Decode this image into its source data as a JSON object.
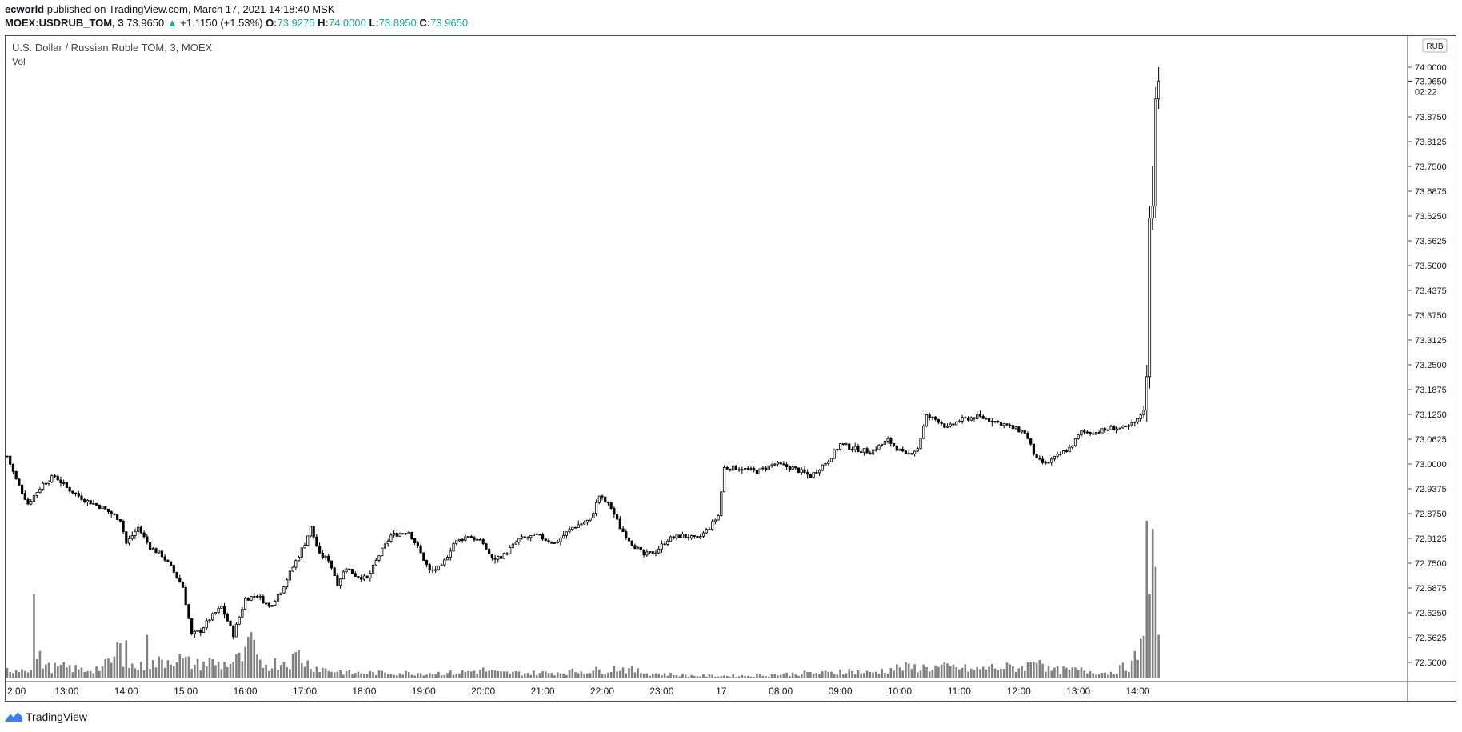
{
  "header": {
    "author": "ecworld",
    "published_text": " published on TradingView.com, March 17, 2021 14:18:40 MSK",
    "symbol": "MOEX:USDRUB_TOM, 3",
    "last": "73.9650",
    "change_arrow": "▲",
    "change": "+1.1150 (+1.53%)",
    "o_label": "O:",
    "o_value": "73.9275",
    "h_label": "H:",
    "h_value": "74.0000",
    "l_label": "L:",
    "l_value": "73.8950",
    "c_label": "C:",
    "c_value": "73.9650"
  },
  "legend": {
    "title": "U.S. Dollar / Russian Ruble TOM, 3, MOEX",
    "vol_label": "Vol"
  },
  "price_axis": {
    "currency_badge": "RUB",
    "last_price": "73.9650",
    "countdown": "02:22"
  },
  "brand": {
    "name": "TradingView"
  },
  "colors": {
    "up_body": "#ffffff",
    "down_body": "#000000",
    "wick": "#000000",
    "volume": "#808080",
    "accent": "#26a69a"
  },
  "chart_data": {
    "type": "candlestick",
    "title": "U.S. Dollar / Russian Ruble TOM, 3, MOEX",
    "ylim": [
      72.45,
      74.05
    ],
    "y_ticks": [
      "74.0000",
      "73.8750",
      "73.8125",
      "73.7500",
      "73.6875",
      "73.6250",
      "73.5625",
      "73.5000",
      "73.4375",
      "73.3750",
      "73.3125",
      "73.2500",
      "73.1875",
      "73.1250",
      "73.0625",
      "73.0000",
      "72.9375",
      "72.8750",
      "72.8125",
      "72.7500",
      "72.6875",
      "72.6250",
      "72.5625",
      "72.5000"
    ],
    "x_ticks": [
      {
        "label": "2:00",
        "i": 0
      },
      {
        "label": "13:00",
        "i": 20
      },
      {
        "label": "14:00",
        "i": 40
      },
      {
        "label": "15:00",
        "i": 60
      },
      {
        "label": "16:00",
        "i": 80
      },
      {
        "label": "17:00",
        "i": 100
      },
      {
        "label": "18:00",
        "i": 120
      },
      {
        "label": "19:00",
        "i": 140
      },
      {
        "label": "20:00",
        "i": 160
      },
      {
        "label": "21:00",
        "i": 180
      },
      {
        "label": "22:00",
        "i": 200
      },
      {
        "label": "23:00",
        "i": 220
      },
      {
        "label": "17",
        "i": 240
      },
      {
        "label": "08:00",
        "i": 260
      },
      {
        "label": "09:00",
        "i": 280
      },
      {
        "label": "10:00",
        "i": 300
      },
      {
        "label": "11:00",
        "i": 320
      },
      {
        "label": "12:00",
        "i": 340
      },
      {
        "label": "13:00",
        "i": 360
      },
      {
        "label": "14:00",
        "i": 380
      }
    ],
    "price_anchors": [
      [
        0,
        73.02
      ],
      [
        3,
        72.96
      ],
      [
        7,
        72.9
      ],
      [
        12,
        72.95
      ],
      [
        16,
        72.97
      ],
      [
        20,
        72.94
      ],
      [
        26,
        72.91
      ],
      [
        32,
        72.89
      ],
      [
        38,
        72.86
      ],
      [
        40,
        72.8
      ],
      [
        44,
        72.84
      ],
      [
        48,
        72.79
      ],
      [
        52,
        72.77
      ],
      [
        55,
        72.74
      ],
      [
        59,
        72.69
      ],
      [
        62,
        72.57
      ],
      [
        65,
        72.58
      ],
      [
        68,
        72.61
      ],
      [
        72,
        72.64
      ],
      [
        76,
        72.57
      ],
      [
        80,
        72.66
      ],
      [
        84,
        72.67
      ],
      [
        88,
        72.64
      ],
      [
        92,
        72.68
      ],
      [
        96,
        72.74
      ],
      [
        100,
        72.8
      ],
      [
        102,
        72.84
      ],
      [
        105,
        72.77
      ],
      [
        108,
        72.76
      ],
      [
        111,
        72.7
      ],
      [
        114,
        72.74
      ],
      [
        117,
        72.72
      ],
      [
        121,
        72.71
      ],
      [
        125,
        72.77
      ],
      [
        129,
        72.82
      ],
      [
        135,
        72.83
      ],
      [
        138,
        72.79
      ],
      [
        142,
        72.73
      ],
      [
        146,
        72.74
      ],
      [
        150,
        72.8
      ],
      [
        155,
        72.82
      ],
      [
        160,
        72.8
      ],
      [
        163,
        72.76
      ],
      [
        167,
        72.77
      ],
      [
        172,
        72.81
      ],
      [
        178,
        72.82
      ],
      [
        184,
        72.8
      ],
      [
        190,
        72.84
      ],
      [
        196,
        72.86
      ],
      [
        199,
        72.92
      ],
      [
        203,
        72.89
      ],
      [
        206,
        72.84
      ],
      [
        210,
        72.8
      ],
      [
        214,
        72.77
      ],
      [
        218,
        72.78
      ],
      [
        222,
        72.81
      ],
      [
        227,
        72.82
      ],
      [
        232,
        72.81
      ],
      [
        236,
        72.84
      ],
      [
        239,
        72.87
      ],
      [
        241,
        72.99
      ],
      [
        246,
        72.99
      ],
      [
        252,
        72.98
      ],
      [
        258,
        73.0
      ],
      [
        264,
        72.99
      ],
      [
        270,
        72.97
      ],
      [
        276,
        73.01
      ],
      [
        280,
        73.05
      ],
      [
        284,
        73.04
      ],
      [
        290,
        73.03
      ],
      [
        296,
        73.06
      ],
      [
        299,
        73.04
      ],
      [
        302,
        73.02
      ],
      [
        306,
        73.04
      ],
      [
        309,
        73.12
      ],
      [
        313,
        73.11
      ],
      [
        316,
        73.09
      ],
      [
        320,
        73.11
      ],
      [
        326,
        73.12
      ],
      [
        331,
        73.11
      ],
      [
        335,
        73.1
      ],
      [
        338,
        73.09
      ],
      [
        342,
        73.08
      ],
      [
        346,
        73.01
      ],
      [
        349,
        73.0
      ],
      [
        353,
        73.02
      ],
      [
        357,
        73.04
      ],
      [
        361,
        73.08
      ],
      [
        366,
        73.08
      ],
      [
        371,
        73.09
      ],
      [
        376,
        73.09
      ],
      [
        380,
        73.11
      ],
      [
        382,
        73.14
      ],
      [
        383,
        73.22
      ],
      [
        384,
        73.62
      ],
      [
        385,
        73.65
      ],
      [
        386,
        73.92
      ],
      [
        387,
        73.965
      ]
    ],
    "volume_anchors": [
      [
        0,
        3
      ],
      [
        8,
        4
      ],
      [
        9,
        24
      ],
      [
        10,
        8
      ],
      [
        14,
        4
      ],
      [
        20,
        4
      ],
      [
        26,
        3
      ],
      [
        32,
        4
      ],
      [
        36,
        7
      ],
      [
        37,
        12
      ],
      [
        40,
        5
      ],
      [
        44,
        4
      ],
      [
        48,
        5
      ],
      [
        52,
        6
      ],
      [
        56,
        8
      ],
      [
        60,
        6
      ],
      [
        64,
        5
      ],
      [
        68,
        6
      ],
      [
        72,
        5
      ],
      [
        76,
        6
      ],
      [
        80,
        8
      ],
      [
        82,
        14
      ],
      [
        84,
        6
      ],
      [
        88,
        5
      ],
      [
        92,
        6
      ],
      [
        96,
        7
      ],
      [
        98,
        9
      ],
      [
        100,
        6
      ],
      [
        104,
        4
      ],
      [
        108,
        3
      ],
      [
        116,
        2
      ],
      [
        130,
        2
      ],
      [
        150,
        2
      ],
      [
        160,
        3
      ],
      [
        165,
        2
      ],
      [
        180,
        2
      ],
      [
        200,
        3
      ],
      [
        205,
        4
      ],
      [
        215,
        2
      ],
      [
        230,
        1
      ],
      [
        250,
        1
      ],
      [
        270,
        2
      ],
      [
        279,
        2
      ],
      [
        280,
        3
      ],
      [
        290,
        2
      ],
      [
        300,
        4
      ],
      [
        305,
        4
      ],
      [
        310,
        4
      ],
      [
        320,
        4
      ],
      [
        325,
        3
      ],
      [
        330,
        4
      ],
      [
        335,
        4
      ],
      [
        340,
        4
      ],
      [
        344,
        5
      ],
      [
        346,
        9
      ],
      [
        347,
        8
      ],
      [
        350,
        3
      ],
      [
        356,
        3
      ],
      [
        360,
        3
      ],
      [
        370,
        2
      ],
      [
        378,
        5
      ],
      [
        380,
        9
      ],
      [
        382,
        12
      ],
      [
        383,
        58
      ],
      [
        384,
        31
      ],
      [
        385,
        55
      ],
      [
        386,
        31
      ],
      [
        387,
        16
      ]
    ],
    "volume_spikes": [
      [
        9,
        31
      ],
      [
        40,
        14
      ],
      [
        47,
        16
      ],
      [
        82,
        17
      ],
      [
        383,
        58
      ],
      [
        385,
        55
      ],
      [
        384,
        31
      ],
      [
        387,
        16
      ]
    ]
  }
}
